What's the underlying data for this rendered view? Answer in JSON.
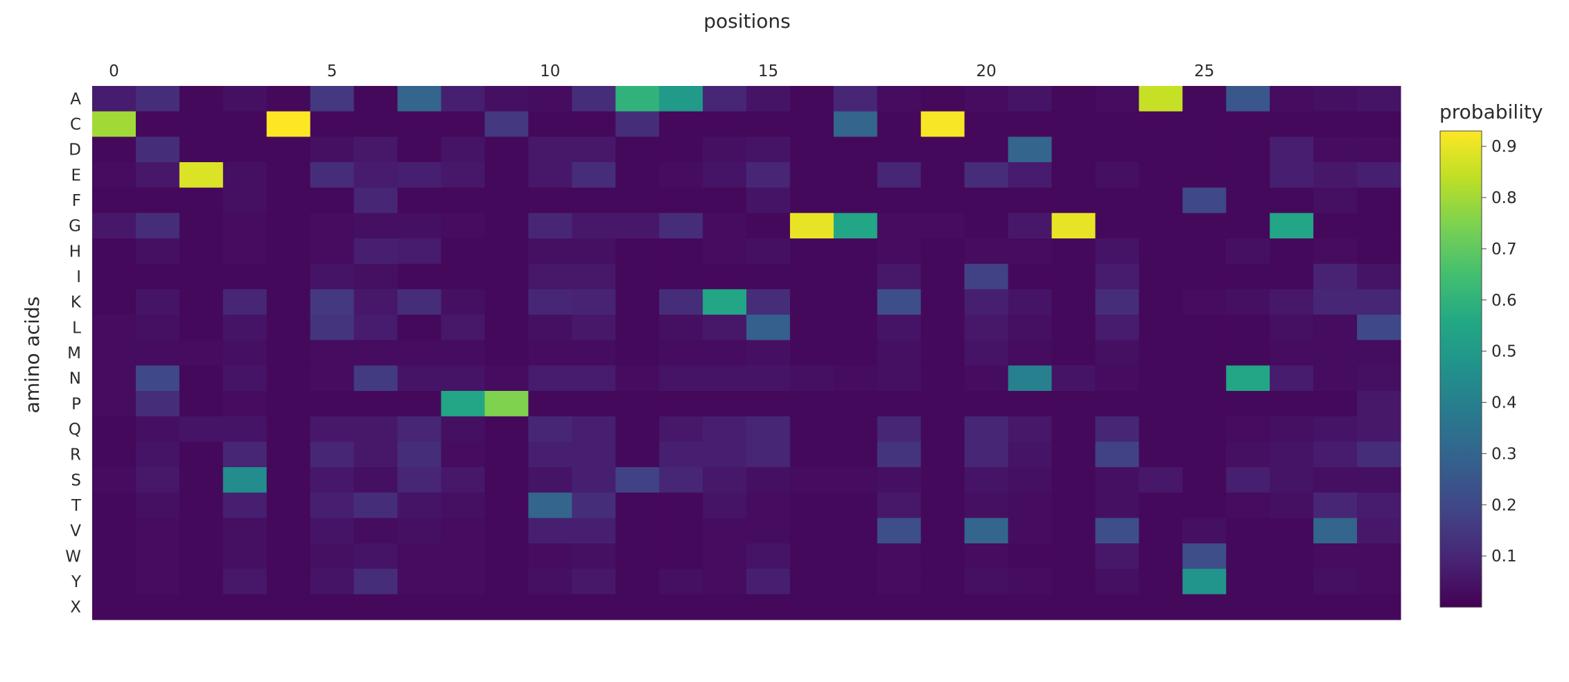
{
  "chart_data": {
    "type": "heatmap",
    "title": "",
    "xlabel": "positions",
    "ylabel": "amino acids",
    "x_axis_position": "top",
    "x_tick_values": [
      0,
      5,
      10,
      15,
      20,
      25
    ],
    "x": [
      0,
      1,
      2,
      3,
      4,
      5,
      6,
      7,
      8,
      9,
      10,
      11,
      12,
      13,
      14,
      15,
      16,
      17,
      18,
      19,
      20,
      21,
      22,
      23,
      24,
      25,
      26,
      27,
      28,
      29
    ],
    "y": [
      "A",
      "C",
      "D",
      "E",
      "F",
      "G",
      "H",
      "I",
      "K",
      "L",
      "M",
      "N",
      "P",
      "Q",
      "R",
      "S",
      "T",
      "V",
      "W",
      "Y",
      "X"
    ],
    "z": [
      [
        0.07,
        0.12,
        0.02,
        0.04,
        0.02,
        0.15,
        0.02,
        0.3,
        0.08,
        0.04,
        0.03,
        0.12,
        0.6,
        0.5,
        0.1,
        0.05,
        0.02,
        0.1,
        0.03,
        0.02,
        0.03,
        0.05,
        0.02,
        0.03,
        0.85,
        0.02,
        0.25,
        0.03,
        0.04,
        0.05
      ],
      [
        0.8,
        0.02,
        0.02,
        0.02,
        0.93,
        0.02,
        0.02,
        0.02,
        0.02,
        0.15,
        0.02,
        0.02,
        0.12,
        0.02,
        0.02,
        0.02,
        0.02,
        0.3,
        0.02,
        0.92,
        0.02,
        0.02,
        0.02,
        0.02,
        0.02,
        0.02,
        0.02,
        0.02,
        0.02,
        0.02
      ],
      [
        0.02,
        0.12,
        0.02,
        0.02,
        0.02,
        0.04,
        0.06,
        0.02,
        0.05,
        0.02,
        0.06,
        0.06,
        0.02,
        0.02,
        0.04,
        0.05,
        0.02,
        0.02,
        0.02,
        0.02,
        0.02,
        0.3,
        0.02,
        0.02,
        0.02,
        0.02,
        0.02,
        0.08,
        0.03,
        0.03
      ],
      [
        0.03,
        0.06,
        0.88,
        0.04,
        0.02,
        0.12,
        0.07,
        0.08,
        0.06,
        0.02,
        0.06,
        0.12,
        0.02,
        0.03,
        0.05,
        0.1,
        0.02,
        0.02,
        0.1,
        0.02,
        0.12,
        0.07,
        0.02,
        0.04,
        0.02,
        0.02,
        0.02,
        0.08,
        0.06,
        0.08
      ],
      [
        0.02,
        0.02,
        0.02,
        0.04,
        0.02,
        0.02,
        0.1,
        0.02,
        0.02,
        0.02,
        0.02,
        0.02,
        0.02,
        0.02,
        0.02,
        0.05,
        0.02,
        0.02,
        0.02,
        0.02,
        0.02,
        0.02,
        0.02,
        0.02,
        0.02,
        0.2,
        0.02,
        0.02,
        0.04,
        0.02
      ],
      [
        0.06,
        0.12,
        0.02,
        0.03,
        0.02,
        0.03,
        0.04,
        0.04,
        0.03,
        0.02,
        0.1,
        0.06,
        0.06,
        0.12,
        0.03,
        0.02,
        0.9,
        0.55,
        0.03,
        0.03,
        0.02,
        0.06,
        0.9,
        0.02,
        0.02,
        0.02,
        0.02,
        0.55,
        0.02,
        0.02
      ],
      [
        0.02,
        0.04,
        0.02,
        0.03,
        0.02,
        0.03,
        0.08,
        0.07,
        0.02,
        0.02,
        0.04,
        0.04,
        0.02,
        0.02,
        0.03,
        0.04,
        0.02,
        0.02,
        0.03,
        0.02,
        0.03,
        0.03,
        0.02,
        0.05,
        0.02,
        0.02,
        0.04,
        0.02,
        0.03,
        0.02
      ],
      [
        0.02,
        0.02,
        0.02,
        0.02,
        0.02,
        0.05,
        0.04,
        0.02,
        0.02,
        0.02,
        0.06,
        0.06,
        0.02,
        0.02,
        0.02,
        0.02,
        0.02,
        0.02,
        0.06,
        0.02,
        0.18,
        0.02,
        0.02,
        0.07,
        0.02,
        0.02,
        0.02,
        0.02,
        0.09,
        0.05
      ],
      [
        0.02,
        0.05,
        0.02,
        0.1,
        0.02,
        0.15,
        0.06,
        0.12,
        0.04,
        0.02,
        0.1,
        0.09,
        0.02,
        0.12,
        0.55,
        0.12,
        0.02,
        0.02,
        0.22,
        0.02,
        0.08,
        0.05,
        0.02,
        0.12,
        0.02,
        0.03,
        0.04,
        0.06,
        0.1,
        0.1
      ],
      [
        0.03,
        0.04,
        0.02,
        0.05,
        0.02,
        0.14,
        0.07,
        0.02,
        0.06,
        0.02,
        0.04,
        0.06,
        0.02,
        0.04,
        0.06,
        0.28,
        0.02,
        0.02,
        0.05,
        0.02,
        0.06,
        0.04,
        0.02,
        0.07,
        0.02,
        0.02,
        0.02,
        0.04,
        0.03,
        0.2
      ],
      [
        0.03,
        0.03,
        0.03,
        0.04,
        0.02,
        0.03,
        0.03,
        0.03,
        0.03,
        0.02,
        0.03,
        0.03,
        0.02,
        0.03,
        0.03,
        0.04,
        0.02,
        0.02,
        0.04,
        0.02,
        0.05,
        0.03,
        0.02,
        0.04,
        0.02,
        0.02,
        0.02,
        0.03,
        0.03,
        0.03
      ],
      [
        0.03,
        0.2,
        0.02,
        0.05,
        0.02,
        0.03,
        0.16,
        0.05,
        0.05,
        0.03,
        0.07,
        0.07,
        0.03,
        0.05,
        0.05,
        0.05,
        0.04,
        0.03,
        0.04,
        0.02,
        0.03,
        0.4,
        0.05,
        0.03,
        0.02,
        0.02,
        0.55,
        0.07,
        0.03,
        0.04
      ],
      [
        0.03,
        0.12,
        0.02,
        0.03,
        0.02,
        0.02,
        0.02,
        0.02,
        0.55,
        0.75,
        0.02,
        0.02,
        0.02,
        0.02,
        0.02,
        0.02,
        0.02,
        0.02,
        0.02,
        0.02,
        0.02,
        0.02,
        0.02,
        0.02,
        0.02,
        0.02,
        0.02,
        0.02,
        0.02,
        0.06
      ],
      [
        0.02,
        0.04,
        0.05,
        0.05,
        0.02,
        0.06,
        0.06,
        0.1,
        0.04,
        0.02,
        0.1,
        0.08,
        0.02,
        0.06,
        0.08,
        0.1,
        0.02,
        0.02,
        0.1,
        0.02,
        0.1,
        0.06,
        0.02,
        0.1,
        0.02,
        0.02,
        0.03,
        0.04,
        0.05,
        0.06
      ],
      [
        0.02,
        0.05,
        0.02,
        0.1,
        0.02,
        0.1,
        0.06,
        0.12,
        0.03,
        0.02,
        0.08,
        0.08,
        0.02,
        0.08,
        0.08,
        0.1,
        0.02,
        0.02,
        0.14,
        0.02,
        0.1,
        0.05,
        0.02,
        0.18,
        0.02,
        0.02,
        0.04,
        0.05,
        0.07,
        0.12
      ],
      [
        0.03,
        0.06,
        0.02,
        0.45,
        0.02,
        0.06,
        0.04,
        0.1,
        0.06,
        0.02,
        0.05,
        0.08,
        0.18,
        0.1,
        0.06,
        0.04,
        0.03,
        0.03,
        0.04,
        0.02,
        0.05,
        0.04,
        0.02,
        0.04,
        0.06,
        0.02,
        0.08,
        0.05,
        0.04,
        0.04
      ],
      [
        0.02,
        0.04,
        0.02,
        0.08,
        0.02,
        0.08,
        0.12,
        0.05,
        0.04,
        0.02,
        0.3,
        0.12,
        0.02,
        0.02,
        0.05,
        0.03,
        0.02,
        0.02,
        0.06,
        0.02,
        0.04,
        0.03,
        0.02,
        0.04,
        0.02,
        0.02,
        0.03,
        0.04,
        0.1,
        0.07
      ],
      [
        0.02,
        0.03,
        0.02,
        0.04,
        0.02,
        0.05,
        0.03,
        0.04,
        0.03,
        0.02,
        0.08,
        0.08,
        0.02,
        0.02,
        0.03,
        0.03,
        0.02,
        0.02,
        0.22,
        0.02,
        0.3,
        0.03,
        0.02,
        0.22,
        0.02,
        0.04,
        0.02,
        0.02,
        0.3,
        0.06
      ],
      [
        0.02,
        0.03,
        0.02,
        0.04,
        0.02,
        0.04,
        0.05,
        0.03,
        0.03,
        0.02,
        0.03,
        0.04,
        0.02,
        0.02,
        0.03,
        0.05,
        0.02,
        0.02,
        0.03,
        0.02,
        0.03,
        0.02,
        0.02,
        0.06,
        0.02,
        0.22,
        0.02,
        0.02,
        0.03,
        0.03
      ],
      [
        0.02,
        0.03,
        0.02,
        0.06,
        0.02,
        0.05,
        0.12,
        0.03,
        0.03,
        0.02,
        0.04,
        0.06,
        0.02,
        0.04,
        0.03,
        0.08,
        0.02,
        0.02,
        0.03,
        0.02,
        0.04,
        0.03,
        0.02,
        0.04,
        0.02,
        0.48,
        0.02,
        0.02,
        0.04,
        0.03
      ],
      [
        0.02,
        0.02,
        0.02,
        0.02,
        0.02,
        0.02,
        0.02,
        0.02,
        0.02,
        0.02,
        0.02,
        0.02,
        0.02,
        0.02,
        0.02,
        0.02,
        0.02,
        0.02,
        0.02,
        0.02,
        0.02,
        0.02,
        0.02,
        0.02,
        0.02,
        0.02,
        0.02,
        0.02,
        0.02,
        0.02
      ]
    ],
    "zmin": 0,
    "zmax": 0.93,
    "colorscale": "viridis",
    "colorbar": {
      "title": "probability",
      "tick_values": [
        0.1,
        0.2,
        0.3,
        0.4,
        0.5,
        0.6,
        0.7,
        0.8,
        0.9
      ],
      "tick_labels": [
        "0.1",
        "0.2",
        "0.3",
        "0.4",
        "0.5",
        "0.6",
        "0.7",
        "0.8",
        "0.9"
      ]
    }
  }
}
